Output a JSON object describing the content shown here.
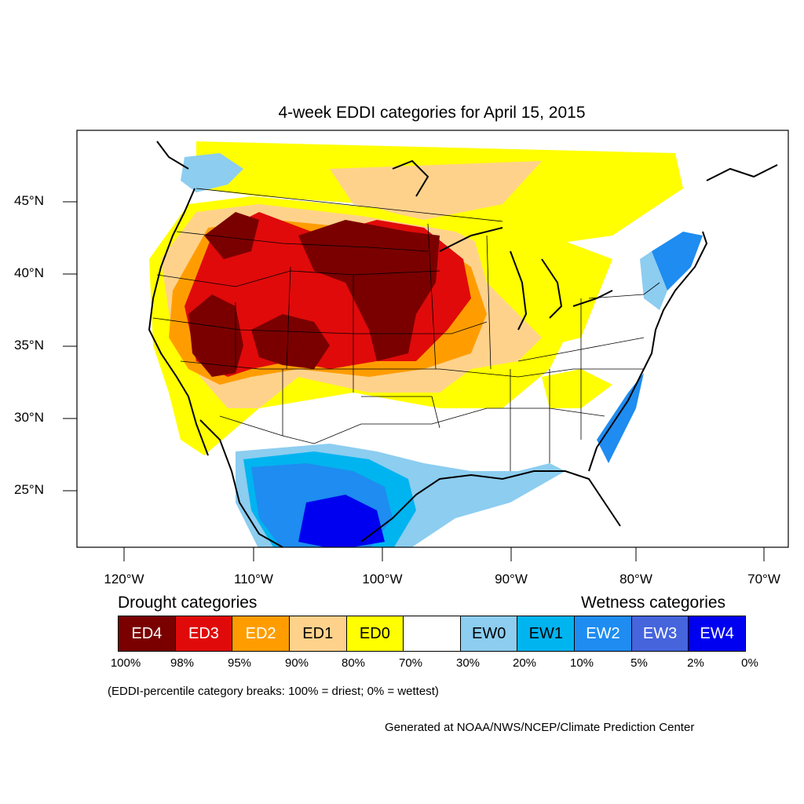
{
  "title": "4-week EDDI categories for April 15, 2015",
  "lat_labels": [
    "45°N",
    "40°N",
    "35°N",
    "30°N",
    "25°N"
  ],
  "lon_labels": [
    "120°W",
    "110°W",
    "100°W",
    "90°W",
    "80°W",
    "70°W"
  ],
  "legend": {
    "drought_title": "Drought categories",
    "wetness_title": "Wetness categories",
    "categories": [
      {
        "label": "ED4",
        "color": "#7a0000",
        "text_color": "#ffffff"
      },
      {
        "label": "ED3",
        "color": "#e00a0a",
        "text_color": "#ffffff"
      },
      {
        "label": "ED2",
        "color": "#ff9d00",
        "text_color": "#ffffff"
      },
      {
        "label": "ED1",
        "color": "#ffd28c",
        "text_color": "#000000"
      },
      {
        "label": "ED0",
        "color": "#ffff00",
        "text_color": "#000000"
      },
      {
        "label": "",
        "color": "#ffffff",
        "text_color": "#000000"
      },
      {
        "label": "EW0",
        "color": "#8ccdf0",
        "text_color": "#000000"
      },
      {
        "label": "EW1",
        "color": "#00b4f0",
        "text_color": "#000000"
      },
      {
        "label": "EW2",
        "color": "#1e8cf0",
        "text_color": "#ffffff"
      },
      {
        "label": "EW3",
        "color": "#4664dc",
        "text_color": "#ffffff"
      },
      {
        "label": "EW4",
        "color": "#0000f0",
        "text_color": "#ffffff"
      }
    ],
    "breaks": [
      "100%",
      "98%",
      "95%",
      "90%",
      "80%",
      "70%",
      "30%",
      "20%",
      "10%",
      "5%",
      "2%",
      "0%"
    ]
  },
  "note": "(EDDI-percentile category breaks: 100% = driest; 0% = wettest)",
  "credit": "Generated at NOAA/NWS/NCEP/Climate Prediction Center"
}
